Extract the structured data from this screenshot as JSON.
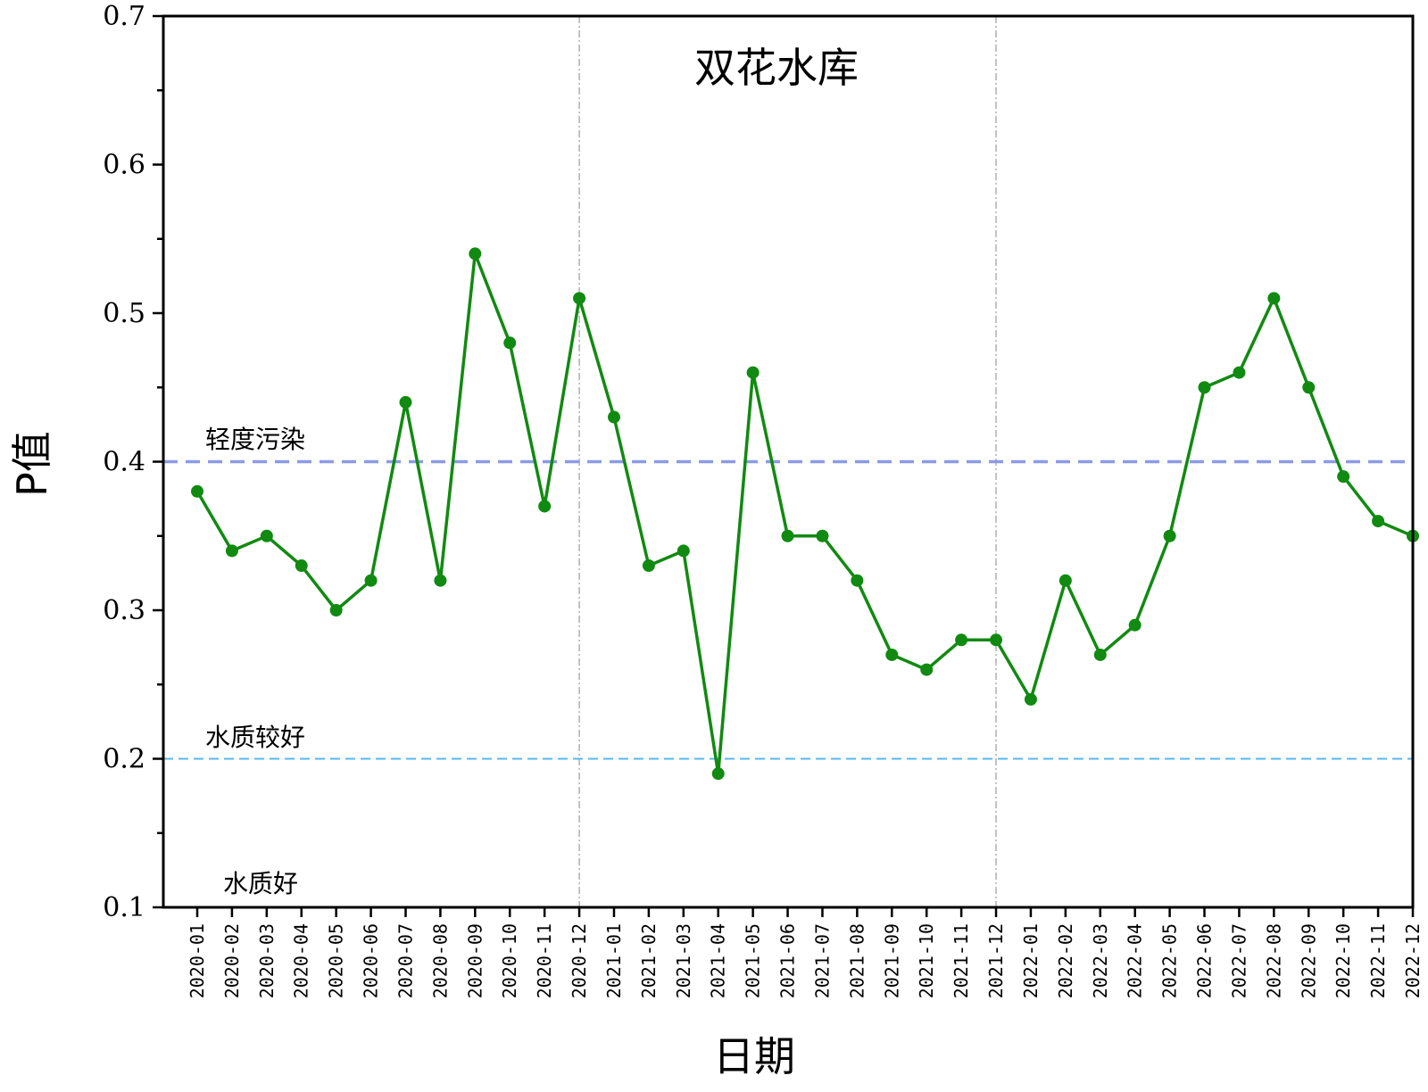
{
  "chart_data": {
    "type": "line",
    "title": "双花水库",
    "xlabel": "日期",
    "ylabel": "P值",
    "ylim": [
      0.1,
      0.7
    ],
    "yticks": [
      "0.1",
      "0.2",
      "0.3",
      "0.4",
      "0.5",
      "0.6",
      "0.7"
    ],
    "categories": [
      "2020-01",
      "2020-02",
      "2020-03",
      "2020-04",
      "2020-05",
      "2020-06",
      "2020-07",
      "2020-08",
      "2020-09",
      "2020-10",
      "2020-11",
      "2020-12",
      "2021-01",
      "2021-02",
      "2021-03",
      "2021-04",
      "2021-05",
      "2021-06",
      "2021-07",
      "2021-08",
      "2021-09",
      "2021-10",
      "2021-11",
      "2021-12",
      "2022-01",
      "2022-02",
      "2022-03",
      "2022-04",
      "2022-05",
      "2022-06",
      "2022-07",
      "2022-08",
      "2022-09",
      "2022-10",
      "2022-11",
      "2022-12"
    ],
    "series": [
      {
        "color": "#118a11",
        "values": [
          0.38,
          0.34,
          0.35,
          0.33,
          0.3,
          0.32,
          0.44,
          0.32,
          0.54,
          0.48,
          0.37,
          0.51,
          0.43,
          0.33,
          0.34,
          0.19,
          0.46,
          0.35,
          0.35,
          0.32,
          0.27,
          0.26,
          0.28,
          0.28,
          0.24,
          0.32,
          0.27,
          0.29,
          0.35,
          0.45,
          0.46,
          0.51,
          0.45,
          0.39,
          0.36,
          0.35
        ]
      }
    ],
    "reference_lines": [
      {
        "y": 0.4,
        "label": "轻度污染",
        "color": "#8c9be6",
        "style": "dashed"
      },
      {
        "y": 0.2,
        "label": "水质较好",
        "color": "#57b7ec",
        "style": "dashed"
      }
    ],
    "band_labels": [
      {
        "label": "水质好"
      }
    ],
    "year_dividers": [
      "2020-12",
      "2021-12"
    ],
    "grid": false,
    "legend": "none"
  }
}
